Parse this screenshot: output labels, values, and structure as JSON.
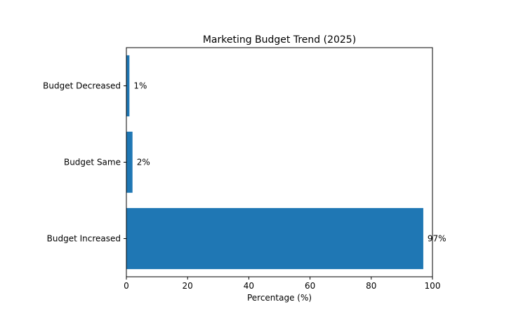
{
  "chart_data": {
    "type": "bar",
    "orientation": "horizontal",
    "title": "Marketing Budget Trend (2025)",
    "xlabel": "Percentage (%)",
    "ylabel": "",
    "categories": [
      "Budget Increased",
      "Budget Same",
      "Budget Decreased"
    ],
    "values": [
      97,
      2,
      1
    ],
    "data_labels": [
      "97%",
      "2%",
      "1%"
    ],
    "xlim": [
      0,
      100
    ],
    "xticks": [
      0,
      20,
      40,
      60,
      80,
      100
    ],
    "xtick_labels": [
      "0",
      "20",
      "40",
      "60",
      "80",
      "100"
    ],
    "grid": false,
    "legend": "none",
    "bar_color": "#1f77b4"
  }
}
